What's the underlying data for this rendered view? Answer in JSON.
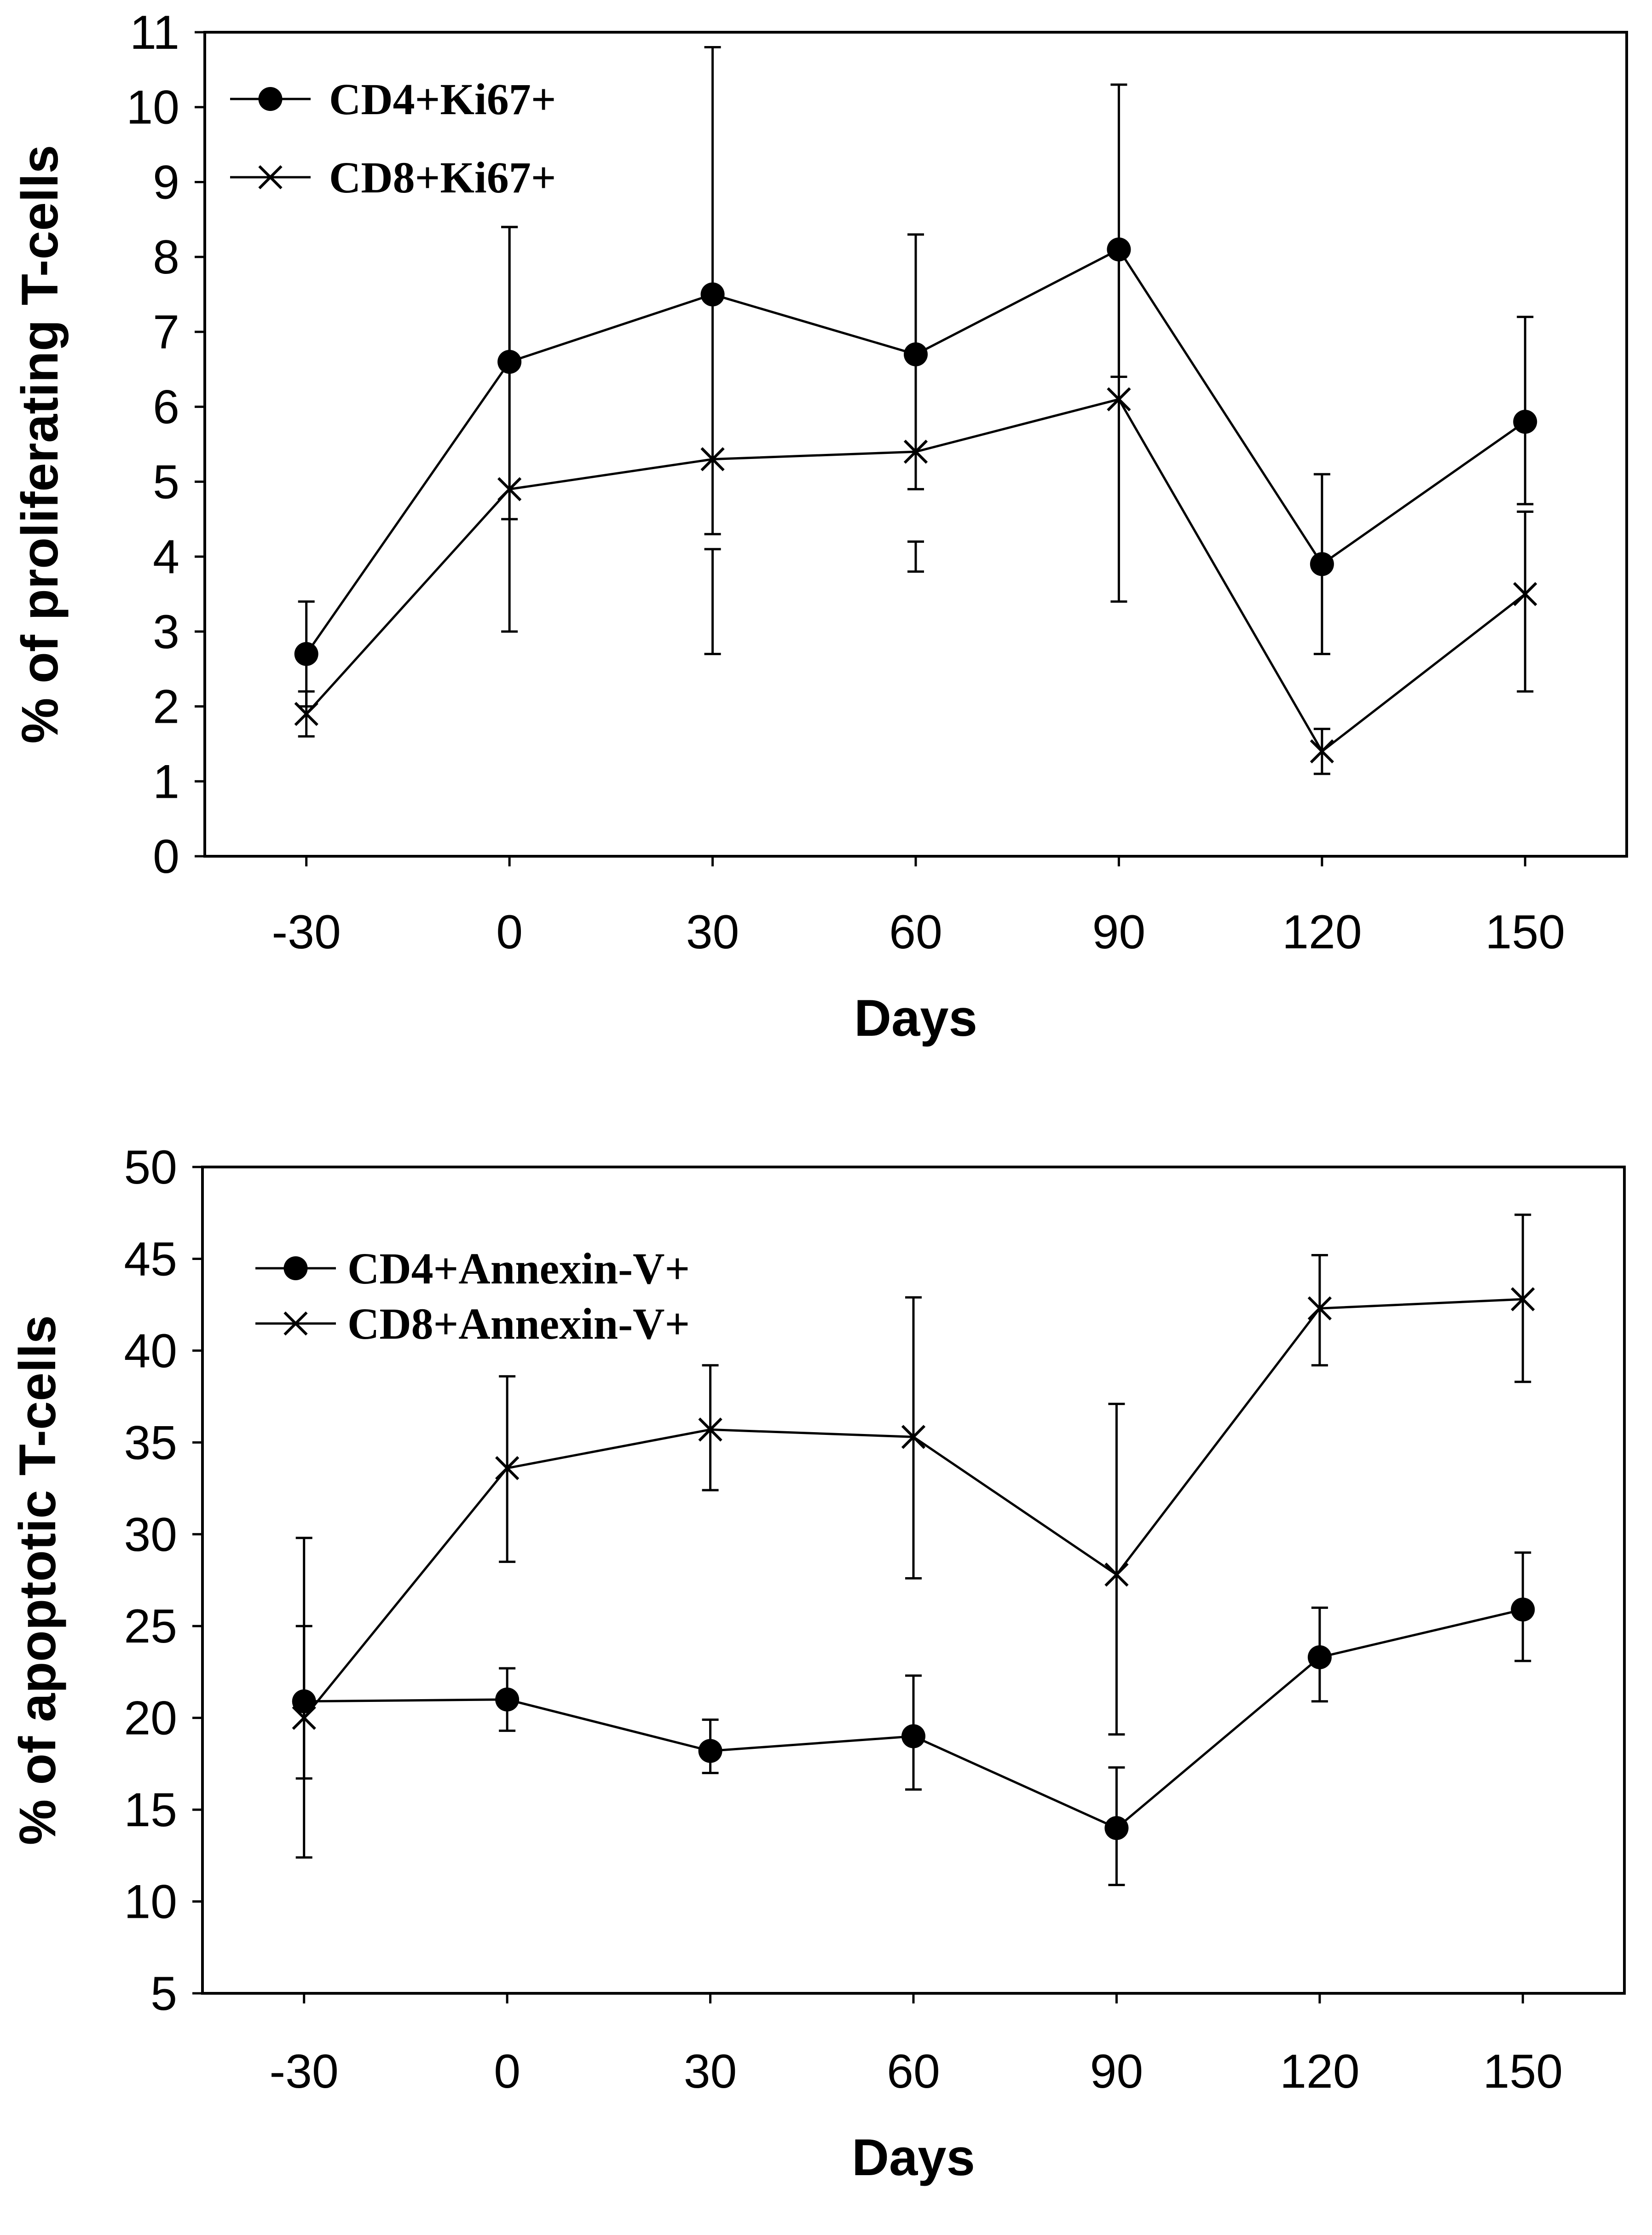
{
  "chart_data": [
    {
      "type": "line",
      "title": "",
      "xlabel": "Days",
      "ylabel": "% of proliferating T-cells",
      "categories": [
        "-30",
        "0",
        "30",
        "60",
        "90",
        "120",
        "150"
      ],
      "x": [
        -30,
        0,
        30,
        60,
        90,
        120,
        150
      ],
      "xlim": [
        -45,
        165
      ],
      "ylim": [
        0,
        11
      ],
      "yticks": [
        0,
        1,
        2,
        3,
        4,
        5,
        6,
        7,
        8,
        9,
        10,
        11
      ],
      "ytick_labels": [
        "0",
        "1",
        "2",
        "3",
        "4",
        "5",
        "6",
        "7",
        "8",
        "9",
        "10",
        "11"
      ],
      "grid": false,
      "legend_position": "top-left",
      "series": [
        {
          "name": "CD4+Ki67+",
          "marker": "circle",
          "values": [
            2.7,
            6.6,
            7.5,
            6.7,
            8.1,
            3.9,
            5.8
          ],
          "err_low": [
            2.0,
            4.5,
            4.3,
            4.9,
            6.4,
            2.7,
            4.7
          ],
          "err_high": [
            3.4,
            8.4,
            10.8,
            8.3,
            10.3,
            5.1,
            7.2
          ]
        },
        {
          "name": "CD8+Ki67+",
          "marker": "x",
          "values": [
            1.9,
            4.9,
            5.3,
            5.4,
            6.1,
            1.4,
            3.5
          ],
          "err_low": [
            1.6,
            3.0,
            2.7,
            3.8,
            3.4,
            1.1,
            2.2
          ],
          "err_high": [
            2.2,
            8.4,
            4.1,
            4.2,
            8.2,
            1.7,
            4.6
          ]
        }
      ]
    },
    {
      "type": "line",
      "title": "",
      "xlabel": "Days",
      "ylabel": "% of apoptotic T-cells",
      "categories": [
        "-30",
        "0",
        "30",
        "60",
        "90",
        "120",
        "150"
      ],
      "x": [
        -30,
        0,
        30,
        60,
        90,
        120,
        150
      ],
      "xlim": [
        -45,
        165
      ],
      "ylim": [
        5,
        50
      ],
      "yticks": [
        5,
        10,
        15,
        20,
        25,
        30,
        35,
        40,
        45,
        50
      ],
      "ytick_labels": [
        "5",
        "10",
        "15",
        "20",
        "25",
        "30",
        "35",
        "40",
        "45",
        "50"
      ],
      "grid": false,
      "legend_position": "top-left",
      "series": [
        {
          "name": "CD4+Annexin-V+",
          "marker": "circle",
          "values": [
            20.9,
            21.0,
            18.2,
            19.0,
            14.0,
            23.3,
            25.9
          ],
          "err_low": [
            16.7,
            19.3,
            17.0,
            16.1,
            10.9,
            20.9,
            23.1
          ],
          "err_high": [
            25.0,
            22.7,
            19.9,
            22.3,
            17.3,
            26.0,
            29.0
          ]
        },
        {
          "name": "CD8+Annexin-V+",
          "marker": "x",
          "values": [
            20.0,
            33.6,
            35.7,
            35.3,
            27.8,
            42.3,
            42.8
          ],
          "err_low": [
            12.4,
            28.5,
            32.4,
            27.6,
            19.1,
            39.2,
            38.3
          ],
          "err_high": [
            29.8,
            38.6,
            39.2,
            42.9,
            37.1,
            45.2,
            47.4
          ]
        }
      ]
    }
  ]
}
